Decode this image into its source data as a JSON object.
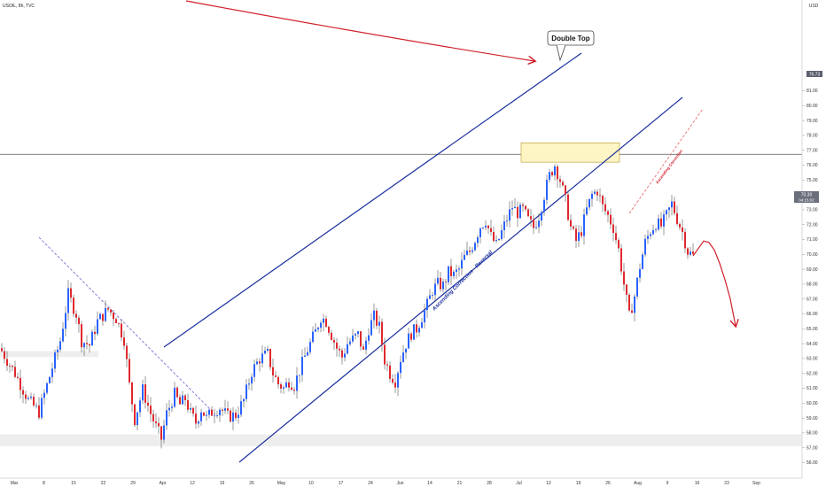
{
  "header": {
    "symbol_label": "USOIL, 8h, TVC"
  },
  "price_axis": {
    "currency": "USD",
    "ticks": [
      "56.00",
      "57.00",
      "58.00",
      "59.00",
      "60.00",
      "61.00",
      "62.00",
      "63.00",
      "64.00",
      "65.00",
      "66.00",
      "67.00",
      "68.00",
      "69.00",
      "70.00",
      "71.00",
      "72.00",
      "73.00",
      "74.00",
      "75.00",
      "76.00",
      "77.00",
      "78.00",
      "79.00",
      "80.00",
      "81.00"
    ],
    "marker_level": "76.73",
    "current_price": "70.30",
    "current_time": "04:15:02"
  },
  "time_axis": {
    "ticks": [
      "Mar",
      "8",
      "15",
      "22",
      "29",
      "Apr",
      "12",
      "19",
      "26",
      "May",
      "10",
      "17",
      "24",
      "Jun",
      "14",
      "21",
      "28",
      "Jul",
      "12",
      "19",
      "26",
      "Aug",
      "9",
      "16",
      "23",
      "Sep"
    ]
  },
  "annotations": {
    "double_top_label": "Double Top",
    "channel_label": "Ascending Correction - Reversal",
    "small_channel_label": "Ascending Correction"
  },
  "colors": {
    "bull": "#2962ff",
    "bear": "#e0282e",
    "wick": "#555555",
    "channel": "#1a2f9e",
    "arrow": "#d0202a",
    "zone_fill": "#fdf5c4",
    "zone_stroke": "#b59a2a",
    "support_fill": "#eeeeee"
  },
  "chart_data": {
    "type": "candlestick",
    "y_unit": "USD",
    "ylim": [
      55.5,
      81.5
    ],
    "x_range": [
      "Mar",
      "Sep"
    ],
    "horizontal_line": 76.73,
    "resistance_zone": [
      76.2,
      77.5
    ],
    "support_zones": [
      [
        63.1,
        63.5
      ],
      [
        57.1,
        57.9
      ]
    ],
    "close_path": [
      [
        0,
        63.5
      ],
      [
        5,
        62.0
      ],
      [
        10,
        60.2
      ],
      [
        14,
        59.4
      ],
      [
        18,
        61.8
      ],
      [
        22,
        64.2
      ],
      [
        25,
        67.3
      ],
      [
        28,
        66.0
      ],
      [
        30,
        64.2
      ],
      [
        33,
        63.9
      ],
      [
        36,
        65.5
      ],
      [
        40,
        66.3
      ],
      [
        43,
        65.7
      ],
      [
        46,
        64.3
      ],
      [
        48,
        61.2
      ],
      [
        50,
        58.9
      ],
      [
        53,
        60.9
      ],
      [
        56,
        59.3
      ],
      [
        58,
        58.4
      ],
      [
        60,
        57.6
      ],
      [
        62,
        59.3
      ],
      [
        65,
        60.6
      ],
      [
        67,
        59.9
      ],
      [
        69,
        60.3
      ],
      [
        71,
        59.3
      ],
      [
        73,
        58.7
      ],
      [
        75,
        59.6
      ],
      [
        77,
        59.0
      ],
      [
        79,
        59.4
      ],
      [
        82,
        59.7
      ],
      [
        85,
        59.1
      ],
      [
        88,
        59.2
      ],
      [
        91,
        60.2
      ],
      [
        94,
        62.1
      ],
      [
        97,
        63.0
      ],
      [
        100,
        63.3
      ],
      [
        102,
        62.0
      ],
      [
        104,
        61.3
      ],
      [
        106,
        61.0
      ],
      [
        108,
        61.5
      ],
      [
        110,
        61.2
      ],
      [
        112,
        62.2
      ],
      [
        115,
        63.6
      ],
      [
        118,
        64.8
      ],
      [
        120,
        65.8
      ],
      [
        122,
        65.5
      ],
      [
        124,
        64.6
      ],
      [
        126,
        63.7
      ],
      [
        128,
        63.1
      ],
      [
        130,
        64.0
      ],
      [
        132,
        64.3
      ],
      [
        134,
        64.6
      ],
      [
        136,
        63.4
      ],
      [
        138,
        65.0
      ],
      [
        140,
        65.8
      ],
      [
        142,
        65.1
      ],
      [
        144,
        62.9
      ],
      [
        146,
        62.0
      ],
      [
        148,
        61.5
      ],
      [
        150,
        63.0
      ],
      [
        152,
        64.0
      ],
      [
        154,
        64.7
      ],
      [
        156,
        65.0
      ],
      [
        158,
        65.8
      ],
      [
        160,
        66.6
      ],
      [
        162,
        67.6
      ],
      [
        164,
        68.0
      ],
      [
        166,
        67.9
      ],
      [
        168,
        68.8
      ],
      [
        170,
        68.6
      ],
      [
        172,
        69.0
      ],
      [
        174,
        69.8
      ],
      [
        176,
        70.2
      ],
      [
        178,
        71.0
      ],
      [
        180,
        71.9
      ],
      [
        182,
        72.3
      ],
      [
        184,
        71.2
      ],
      [
        186,
        70.6
      ],
      [
        188,
        71.5
      ],
      [
        190,
        72.4
      ],
      [
        192,
        73.2
      ],
      [
        194,
        72.8
      ],
      [
        196,
        73.0
      ],
      [
        198,
        72.3
      ],
      [
        200,
        71.8
      ],
      [
        202,
        72.6
      ],
      [
        204,
        74.0
      ],
      [
        206,
        75.3
      ],
      [
        208,
        76.0
      ],
      [
        210,
        75.0
      ],
      [
        212,
        73.6
      ],
      [
        214,
        71.8
      ],
      [
        216,
        70.9
      ],
      [
        218,
        71.6
      ],
      [
        220,
        73.0
      ],
      [
        222,
        74.0
      ],
      [
        224,
        74.3
      ],
      [
        226,
        73.2
      ],
      [
        228,
        72.6
      ],
      [
        230,
        71.8
      ],
      [
        232,
        70.3
      ],
      [
        234,
        68.0
      ],
      [
        236,
        65.8
      ],
      [
        238,
        67.2
      ],
      [
        240,
        69.2
      ],
      [
        242,
        70.8
      ],
      [
        244,
        71.6
      ],
      [
        246,
        72.1
      ],
      [
        248,
        71.9
      ],
      [
        250,
        72.6
      ],
      [
        252,
        73.4
      ],
      [
        254,
        72.4
      ],
      [
        256,
        71.5
      ],
      [
        258,
        70.2
      ],
      [
        260,
        69.9
      ]
    ],
    "projection_path": [
      [
        260,
        69.9
      ],
      [
        262,
        70.4
      ],
      [
        264,
        70.9
      ],
      [
        266,
        70.8
      ],
      [
        268,
        70.3
      ],
      [
        270,
        69.4
      ],
      [
        272,
        68.3
      ],
      [
        274,
        67.0
      ],
      [
        276,
        65.2
      ]
    ]
  }
}
